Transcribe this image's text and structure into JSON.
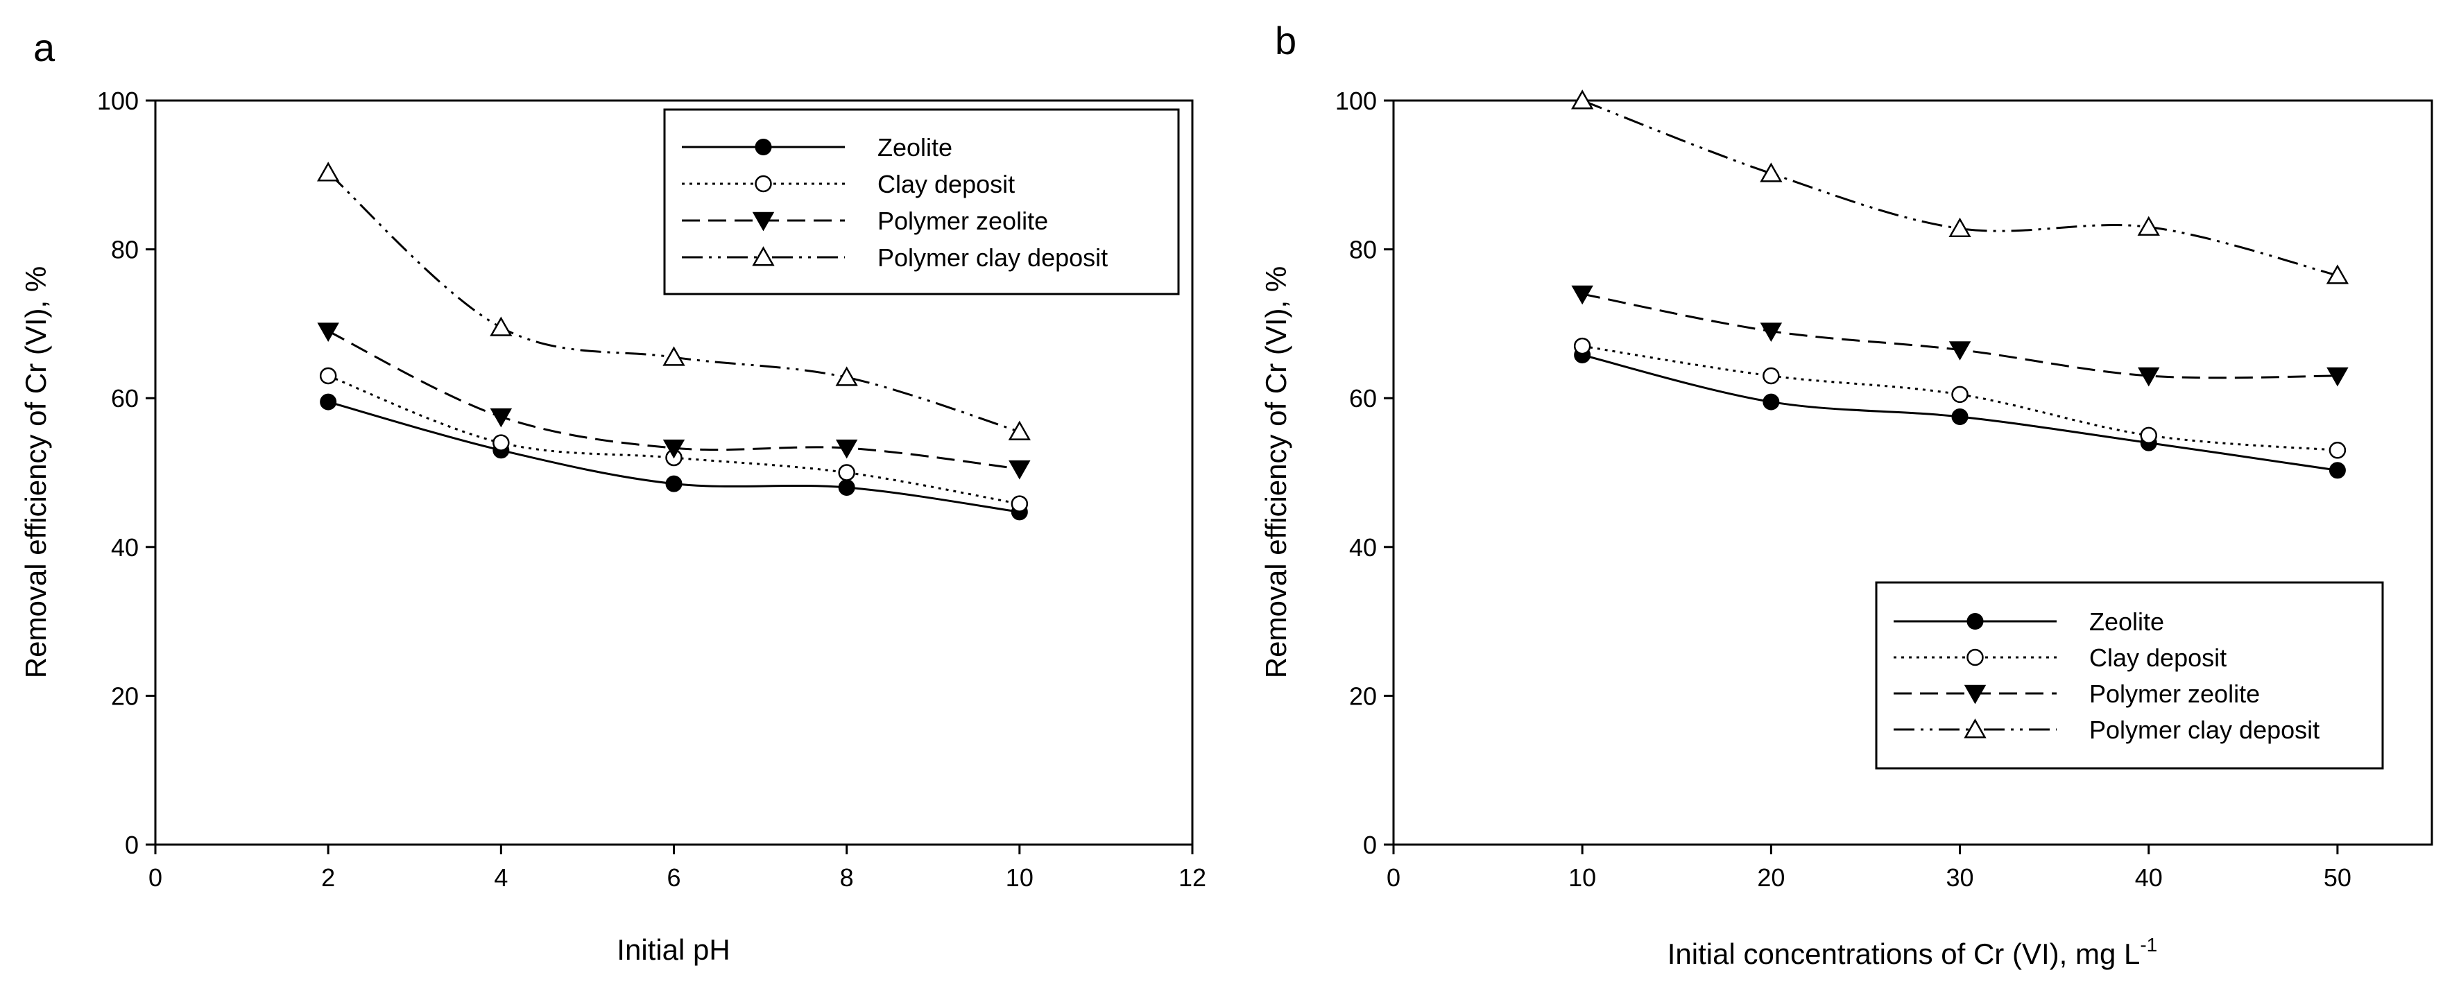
{
  "chart_data": [
    {
      "type": "line",
      "panel_label": "a",
      "title": "",
      "xlabel": "Initial pH",
      "xlabel_sup": "",
      "ylabel": "Removal efficiency of Cr (VI), %",
      "xlim": [
        0,
        12
      ],
      "ylim": [
        0,
        100
      ],
      "xticks": [
        0,
        2,
        4,
        6,
        8,
        10,
        12
      ],
      "yticks": [
        0,
        20,
        40,
        60,
        80,
        100
      ],
      "grid": false,
      "legend_position": "top-right",
      "x": [
        2,
        4,
        6,
        8,
        10
      ],
      "series": [
        {
          "name": "Zeolite",
          "values": [
            59.5,
            53,
            48.5,
            48,
            44.7
          ],
          "marker": "filled-circle",
          "line": "solid"
        },
        {
          "name": "Clay deposit",
          "values": [
            63,
            54,
            52,
            50,
            45.8
          ],
          "marker": "open-circle",
          "line": "dotted"
        },
        {
          "name": "Polymer zeolite",
          "values": [
            69,
            57.5,
            53.3,
            53.3,
            50.5
          ],
          "marker": "filled-triangle-down",
          "line": "dashed"
        },
        {
          "name": "Polymer clay deposit",
          "values": [
            90.3,
            69.5,
            65.5,
            62.8,
            55.5
          ],
          "marker": "open-triangle-up",
          "line": "dash-dot-dot"
        }
      ]
    },
    {
      "type": "line",
      "panel_label": "b",
      "title": "",
      "xlabel": "Initial concentrations of Cr (VI), mg L",
      "xlabel_sup": "-1",
      "ylabel": "Removal efficiency of Cr (VI), %",
      "xlim": [
        0,
        55
      ],
      "ylim": [
        0,
        100
      ],
      "xticks": [
        0,
        10,
        20,
        30,
        40,
        50
      ],
      "yticks": [
        0,
        20,
        40,
        60,
        80,
        100
      ],
      "grid": false,
      "legend_position": "bottom-right",
      "x": [
        10,
        20,
        30,
        40,
        50
      ],
      "series": [
        {
          "name": "Zeolite",
          "values": [
            65.8,
            59.5,
            57.5,
            54,
            50.3
          ],
          "marker": "filled-circle",
          "line": "solid"
        },
        {
          "name": "Clay deposit",
          "values": [
            67,
            63,
            60.5,
            55,
            53
          ],
          "marker": "open-circle",
          "line": "dotted"
        },
        {
          "name": "Polymer zeolite",
          "values": [
            74,
            69,
            66.5,
            63,
            63
          ],
          "marker": "filled-triangle-down",
          "line": "dashed"
        },
        {
          "name": "Polymer clay deposit",
          "values": [
            100,
            90.2,
            82.8,
            83,
            76.5
          ],
          "marker": "open-triangle-up",
          "line": "dash-dot-dot"
        }
      ]
    }
  ]
}
